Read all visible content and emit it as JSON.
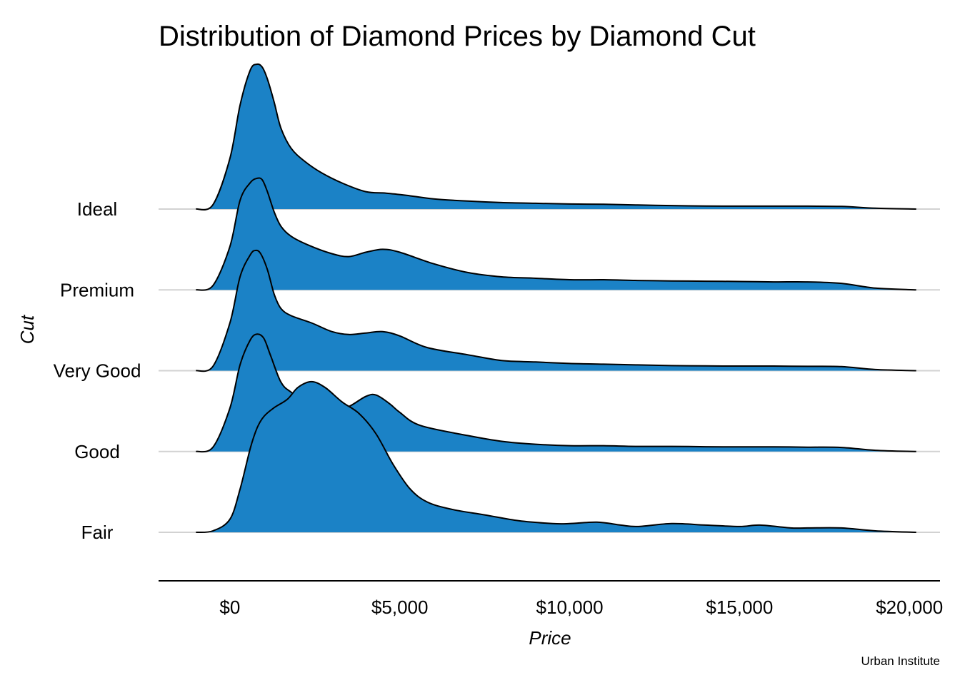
{
  "chart_data": {
    "type": "area",
    "subtype": "ridgeline",
    "title": "Distribution of Diamond Prices by Diamond Cut",
    "xlabel": "Price",
    "ylabel": "Cut",
    "caption": "Urban Institute",
    "fill_color": "#1B82C6",
    "xlim": [
      -2100,
      20900
    ],
    "x_ticks": [
      0,
      5000,
      10000,
      15000,
      20000
    ],
    "x_tick_labels": [
      "$0",
      "$5,000",
      "$10,000",
      "$15,000",
      "$20,000"
    ],
    "categories": [
      "Ideal",
      "Premium",
      "Very Good",
      "Good",
      "Fair"
    ],
    "series": [
      {
        "name": "Ideal",
        "x": [
          -1000,
          -500,
          0,
          300,
          600,
          800,
          950,
          1100,
          1300,
          1500,
          1800,
          2200,
          2700,
          3300,
          4000,
          4600,
          5200,
          6000,
          7000,
          8000,
          9000,
          10000,
          11000,
          12000,
          13000,
          14000,
          15000,
          16000,
          17000,
          18000,
          19000,
          20200
        ],
        "y": [
          0,
          0.03,
          0.35,
          0.72,
          0.96,
          1.0,
          0.98,
          0.9,
          0.74,
          0.56,
          0.42,
          0.33,
          0.25,
          0.18,
          0.12,
          0.11,
          0.095,
          0.07,
          0.055,
          0.045,
          0.04,
          0.035,
          0.033,
          0.028,
          0.024,
          0.021,
          0.02,
          0.02,
          0.02,
          0.018,
          0.006,
          0
        ]
      },
      {
        "name": "Premium",
        "x": [
          -1000,
          -500,
          0,
          300,
          600,
          800,
          950,
          1100,
          1300,
          1500,
          1800,
          2300,
          3000,
          3500,
          4000,
          4500,
          5000,
          6000,
          7000,
          8000,
          9000,
          10000,
          11000,
          12000,
          13000,
          14000,
          15000,
          16000,
          17000,
          18000,
          19000,
          20200
        ],
        "y": [
          0,
          0.03,
          0.3,
          0.62,
          0.74,
          0.77,
          0.76,
          0.68,
          0.54,
          0.44,
          0.37,
          0.31,
          0.25,
          0.23,
          0.26,
          0.28,
          0.26,
          0.18,
          0.12,
          0.09,
          0.08,
          0.07,
          0.07,
          0.065,
          0.062,
          0.06,
          0.058,
          0.055,
          0.055,
          0.045,
          0.012,
          0
        ]
      },
      {
        "name": "Very Good",
        "x": [
          -1000,
          -500,
          0,
          300,
          600,
          750,
          900,
          1100,
          1300,
          1500,
          1800,
          2400,
          3000,
          3500,
          4000,
          4500,
          5000,
          5800,
          7000,
          8000,
          9000,
          10000,
          11000,
          12000,
          13000,
          14000,
          15000,
          16000,
          17000,
          18000,
          19000,
          20200
        ],
        "y": [
          0,
          0.03,
          0.33,
          0.65,
          0.8,
          0.83,
          0.81,
          0.7,
          0.53,
          0.43,
          0.38,
          0.33,
          0.27,
          0.25,
          0.26,
          0.27,
          0.24,
          0.16,
          0.11,
          0.07,
          0.06,
          0.05,
          0.045,
          0.04,
          0.035,
          0.033,
          0.032,
          0.032,
          0.03,
          0.028,
          0.008,
          0
        ]
      },
      {
        "name": "Good",
        "x": [
          -1000,
          -500,
          0,
          300,
          600,
          800,
          1000,
          1200,
          1500,
          1800,
          2400,
          3000,
          3500,
          4000,
          4300,
          4700,
          5000,
          5600,
          7000,
          8000,
          9000,
          10000,
          11000,
          12000,
          13000,
          14000,
          15000,
          16000,
          17000,
          18000,
          19000,
          20200
        ],
        "y": [
          0,
          0.03,
          0.3,
          0.6,
          0.77,
          0.81,
          0.78,
          0.66,
          0.48,
          0.41,
          0.33,
          0.27,
          0.31,
          0.38,
          0.39,
          0.33,
          0.27,
          0.18,
          0.11,
          0.07,
          0.05,
          0.04,
          0.04,
          0.035,
          0.035,
          0.033,
          0.032,
          0.032,
          0.03,
          0.028,
          0.008,
          0
        ]
      },
      {
        "name": "Fair",
        "x": [
          -1000,
          -500,
          0,
          300,
          600,
          800,
          1000,
          1300,
          1700,
          2000,
          2400,
          2800,
          3300,
          3800,
          4300,
          4800,
          5300,
          5800,
          6500,
          7500,
          8500,
          9500,
          10000,
          10800,
          11500,
          12000,
          13000,
          14000,
          15000,
          15600,
          16500,
          17000,
          18000,
          19000,
          20200
        ],
        "y": [
          0,
          0.01,
          0.09,
          0.3,
          0.58,
          0.72,
          0.8,
          0.86,
          0.92,
          1.0,
          1.04,
          1.0,
          0.9,
          0.82,
          0.68,
          0.47,
          0.3,
          0.21,
          0.16,
          0.12,
          0.08,
          0.06,
          0.06,
          0.07,
          0.05,
          0.04,
          0.06,
          0.05,
          0.04,
          0.05,
          0.03,
          0.03,
          0.03,
          0.01,
          0
        ]
      }
    ],
    "grid": "horizontal baselines",
    "legend": "none"
  }
}
